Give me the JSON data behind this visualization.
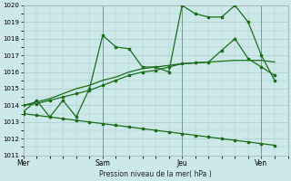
{
  "background_color": "#cce8e8",
  "grid_color": "#aacccc",
  "line_color": "#1a6e1a",
  "xlabel": "Pression niveau de la mer( hPa )",
  "ylim": [
    1011,
    1020
  ],
  "yticks": [
    1011,
    1012,
    1013,
    1014,
    1015,
    1016,
    1017,
    1018,
    1019,
    1020
  ],
  "xtick_labels": [
    "Mer",
    "Sam",
    "Jeu",
    "Ven"
  ],
  "xtick_positions": [
    0,
    3,
    6,
    9
  ],
  "xlim": [
    0,
    10
  ],
  "series1_x": [
    0,
    0.5,
    1,
    1.5,
    2,
    2.5,
    3,
    3.5,
    4,
    4.5,
    5,
    5.5,
    6,
    6.5,
    7,
    7.5,
    8,
    8.5,
    9,
    9.5
  ],
  "series1_y": [
    1013.6,
    1014.3,
    1013.3,
    1014.3,
    1013.3,
    1015.0,
    1018.2,
    1017.5,
    1017.4,
    1016.3,
    1016.3,
    1016.0,
    1020.0,
    1019.5,
    1019.3,
    1019.3,
    1020.0,
    1019.0,
    1017.0,
    1015.5
  ],
  "series2_x": [
    0,
    0.5,
    1,
    1.5,
    2,
    2.5,
    3,
    3.5,
    4,
    4.5,
    5,
    5.5,
    6,
    6.5,
    7,
    7.5,
    8,
    8.5,
    9,
    9.5
  ],
  "series2_y": [
    1014.0,
    1014.1,
    1014.3,
    1014.5,
    1014.7,
    1014.9,
    1015.2,
    1015.5,
    1015.8,
    1016.0,
    1016.1,
    1016.3,
    1016.5,
    1016.55,
    1016.6,
    1017.3,
    1018.0,
    1016.8,
    1016.3,
    1015.8
  ],
  "series3_x": [
    0,
    0.5,
    1,
    1.5,
    2,
    2.5,
    3,
    3.5,
    4,
    4.5,
    5,
    5.5,
    6,
    6.5,
    7,
    7.5,
    8,
    8.5,
    9,
    9.5
  ],
  "series3_y": [
    1014.0,
    1014.2,
    1014.4,
    1014.7,
    1015.0,
    1015.2,
    1015.5,
    1015.7,
    1016.0,
    1016.2,
    1016.3,
    1016.4,
    1016.5,
    1016.55,
    1016.6,
    1016.65,
    1016.7,
    1016.7,
    1016.7,
    1016.6
  ],
  "series4_x": [
    0,
    0.5,
    1,
    1.5,
    2,
    2.5,
    3,
    3.5,
    4,
    4.5,
    5,
    5.5,
    6,
    6.5,
    7,
    7.5,
    8,
    8.5,
    9,
    9.5
  ],
  "series4_y": [
    1013.5,
    1013.4,
    1013.3,
    1013.2,
    1013.1,
    1013.0,
    1012.9,
    1012.8,
    1012.7,
    1012.6,
    1012.5,
    1012.4,
    1012.3,
    1012.2,
    1012.1,
    1012.0,
    1011.9,
    1011.8,
    1011.7,
    1011.6
  ]
}
